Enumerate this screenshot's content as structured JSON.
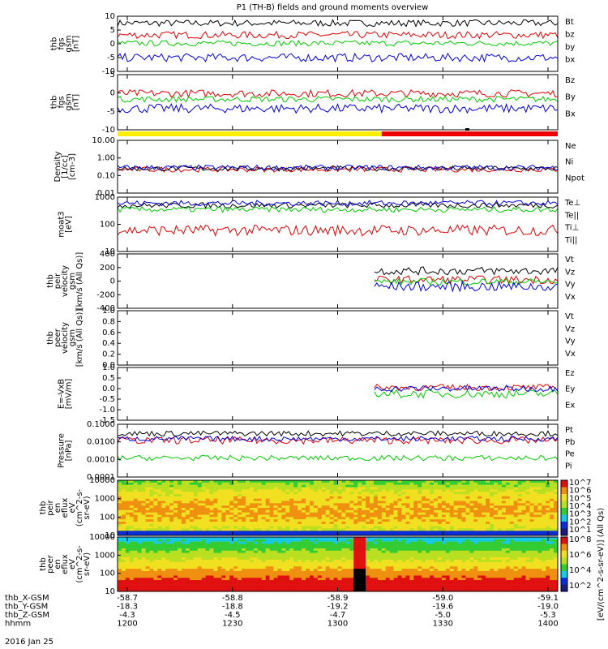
{
  "title": "P1 (TH-B) fields and ground moments overview",
  "date_label": "2016 Jan 25",
  "colors": {
    "black": "#000000",
    "red": "#e00000",
    "green": "#00cc00",
    "blue": "#0000dd",
    "yellow": "#ffee00",
    "barred": "#ee0000"
  },
  "chart_data": [
    {
      "type": "line",
      "id": "fgs_gsm",
      "ylabel": [
        "thb",
        "fgs",
        "gsm",
        "[nT]"
      ],
      "yticks": [
        "10",
        "5",
        "0",
        "-5",
        "-10"
      ],
      "ylim": [
        -10,
        10
      ],
      "log": false,
      "series": [
        {
          "name": "Bt",
          "color": "black",
          "base": 7.5,
          "amp": 1.2
        },
        {
          "name": "bz",
          "color": "red",
          "base": 3.2,
          "amp": 1.3
        },
        {
          "name": "by",
          "color": "green",
          "base": 0.2,
          "amp": 1.0
        },
        {
          "name": "bx",
          "color": "blue",
          "base": -5.0,
          "amp": 1.5
        }
      ]
    },
    {
      "type": "line",
      "id": "fgs_gsm_mirror",
      "ylabel": [
        "thb",
        "fgs",
        "gsm",
        "[nT]"
      ],
      "yticks": [
        "5",
        "0",
        "-5",
        "-10"
      ],
      "ylim": [
        -12,
        10
      ],
      "log": false,
      "series": [
        {
          "name": "Bz",
          "color": "red",
          "base": 2.5,
          "amp": 1.5
        },
        {
          "name": "By",
          "color": "green",
          "base": 0.2,
          "amp": 1.2
        },
        {
          "name": "Bx",
          "color": "blue",
          "base": -3.5,
          "amp": 1.8
        }
      ]
    },
    {
      "type": "line",
      "id": "density",
      "ylabel": [
        "Density",
        "[1/cc]",
        "[cm-3]"
      ],
      "yticks": [
        "10.00",
        "1.00",
        "0.10",
        "0.01"
      ],
      "ylim": [
        0.01,
        10
      ],
      "log": true,
      "series": [
        {
          "name": "Ne",
          "color": "red",
          "base": 0.22,
          "amp": 0.15
        },
        {
          "name": "Ni",
          "color": "black",
          "base": 0.25,
          "amp": 0.15
        },
        {
          "name": "Npot",
          "color": "blue",
          "base": 0.28,
          "amp": 0.15
        }
      ]
    },
    {
      "type": "line",
      "id": "temperature",
      "ylabel": [
        "moat3",
        "[eV]"
      ],
      "yticks": [
        "1000",
        "100",
        "10"
      ],
      "ylim": [
        10,
        1000
      ],
      "log": true,
      "series": [
        {
          "name": "Te⊥",
          "color": "red",
          "base": 60,
          "amp": 0.2
        },
        {
          "name": "Te||",
          "color": "black",
          "base": 500,
          "amp": 0.1
        },
        {
          "name": "Ti⊥",
          "color": "blue",
          "base": 600,
          "amp": 0.1
        },
        {
          "name": "Ti||",
          "color": "green",
          "base": 350,
          "amp": 0.1
        }
      ]
    },
    {
      "type": "line",
      "id": "peir_velocity",
      "ylabel": [
        "thb",
        "peir",
        "velocity",
        "gsm",
        "[km/s (All Qs)]"
      ],
      "yticks": [
        "400",
        "200",
        "0",
        "-200",
        "-400"
      ],
      "ylim": [
        -400,
        400
      ],
      "log": false,
      "start_frac": 0.58,
      "series": [
        {
          "name": "Vt",
          "color": "black",
          "base": 150,
          "amp": 60
        },
        {
          "name": "Vz",
          "color": "red",
          "base": 20,
          "amp": 60
        },
        {
          "name": "Vy",
          "color": "green",
          "base": -10,
          "amp": 50
        },
        {
          "name": "Vx",
          "color": "blue",
          "base": -80,
          "amp": 70
        }
      ]
    },
    {
      "type": "line",
      "id": "peer_velocity",
      "ylabel": [
        "thb",
        "peer",
        "velocity",
        "gsm",
        "[km/s (All Qs)]"
      ],
      "yticks": [
        "1.0",
        "0.8",
        "0.6",
        "0.4",
        "0.2",
        "0.0"
      ],
      "ylim": [
        0,
        1
      ],
      "log": false,
      "series": [
        {
          "name": "Vt",
          "color": "black"
        },
        {
          "name": "Vz",
          "color": "red"
        },
        {
          "name": "Vy",
          "color": "green"
        },
        {
          "name": "Vx",
          "color": "blue"
        }
      ]
    },
    {
      "type": "line",
      "id": "efield",
      "ylabel": [
        "E=-VxB",
        "[mV/m]"
      ],
      "yticks": [
        "1.0",
        "0.5",
        "0.0",
        "-0.5",
        "-1.0",
        "-1.5"
      ],
      "ylim": [
        -1.5,
        1.0
      ],
      "log": false,
      "start_frac": 0.58,
      "series": [
        {
          "name": "Ez",
          "color": "red",
          "base": 0.05,
          "amp": 0.15
        },
        {
          "name": "Ey",
          "color": "green",
          "base": -0.25,
          "amp": 0.2
        },
        {
          "name": "Ex",
          "color": "blue",
          "base": 0.0,
          "amp": 0.15
        }
      ]
    },
    {
      "type": "line",
      "id": "pressure",
      "ylabel": [
        "Pressure",
        "[nPa]"
      ],
      "yticks": [
        "0.1000",
        "0.0100",
        "0.0010",
        "0.0001"
      ],
      "ylim": [
        0.0001,
        0.1
      ],
      "log": true,
      "series": [
        {
          "name": "Pt",
          "color": "black",
          "base": 0.03,
          "amp": 0.15
        },
        {
          "name": "Pb",
          "color": "red",
          "base": 0.012,
          "amp": 0.2
        },
        {
          "name": "Pe",
          "color": "green",
          "base": 0.0012,
          "amp": 0.15
        },
        {
          "name": "Pi",
          "color": "blue",
          "base": 0.015,
          "amp": 0.15
        }
      ]
    },
    {
      "type": "heatmap",
      "id": "peir_spectrogram",
      "ylabel": [
        "thb",
        "peir",
        "en",
        "eflux",
        "eV",
        "(cm^2-s-",
        "sr-eV)"
      ],
      "yticks": [
        "10000",
        "1000",
        "100",
        "10"
      ],
      "ylim": [
        10,
        30000
      ],
      "log": true,
      "colorbar_ticks": [
        "10^7",
        "10^6",
        "10^5",
        "10^4",
        "10^3",
        "10^2",
        "10^1"
      ]
    },
    {
      "type": "heatmap",
      "id": "peer_spectrogram",
      "ylabel": [
        "thb",
        "peer",
        "en",
        "eflux",
        "eV",
        "(cm^2-s-",
        "sr-eV)"
      ],
      "yticks": [
        "10000",
        "1000",
        "100",
        "10"
      ],
      "ylim": [
        10,
        30000
      ],
      "log": true,
      "colorbar_ticks": [
        "10^8",
        "10^6",
        "10^4",
        "10^2"
      ],
      "colorbar_label": "[eV/(cm^2-s-sr-eV)] (All Qs)"
    }
  ],
  "orbit_table": {
    "rows": [
      {
        "label": "thb_X-GSM",
        "values": [
          "-58.7",
          "-58.8",
          "-58.9",
          "-59.0",
          "-59.1"
        ]
      },
      {
        "label": "thb_Y-GSM",
        "values": [
          "-18.3",
          "-18.8",
          "-19.2",
          "-19.6",
          "-19.0"
        ]
      },
      {
        "label": "thb_Z-GSM",
        "values": [
          "-4.3",
          "-4.5",
          "-4.7",
          "-5.0",
          "-5.3"
        ]
      },
      {
        "label": "hhmm",
        "values": [
          "1200",
          "1230",
          "1300",
          "1330",
          "1400"
        ]
      }
    ]
  }
}
